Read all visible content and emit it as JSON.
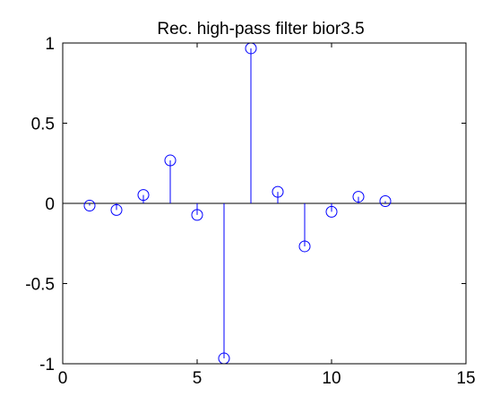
{
  "chart_data": {
    "type": "stem",
    "title": "Rec. high-pass filter bior3.5",
    "xlabel": "",
    "ylabel": "",
    "xlim": [
      0,
      15
    ],
    "ylim": [
      -1,
      1
    ],
    "xticks": [
      "0",
      "5",
      "10",
      "15"
    ],
    "yticks": [
      "-1",
      "-0.5",
      "0",
      "0.5",
      "1"
    ],
    "grid": false,
    "legend": "none",
    "x": [
      1,
      2,
      3,
      4,
      5,
      6,
      7,
      8,
      9,
      10,
      11,
      12
    ],
    "values": [
      -0.0138,
      -0.0414,
      0.0525,
      0.2679,
      -0.0718,
      -0.9667,
      0.9667,
      0.0718,
      -0.2679,
      -0.0525,
      0.0414,
      0.0138
    ],
    "colors": {
      "stem": "#0000ff",
      "axes": "#000000",
      "background": "#ffffff"
    }
  }
}
